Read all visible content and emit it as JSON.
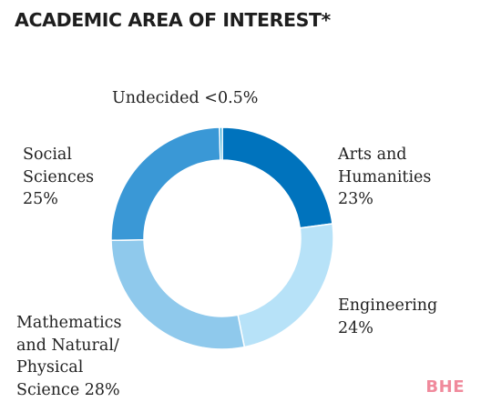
{
  "chart_data": {
    "type": "pie",
    "title": "ACADEMIC AREA OF INTEREST*",
    "slices": [
      {
        "label_lines": [
          "Arts and",
          "Humanities",
          "23%"
        ],
        "value": 23,
        "color": "#0073bd"
      },
      {
        "label_lines": [
          "Engineering",
          "24%"
        ],
        "value": 24,
        "color": "#b7e2f8"
      },
      {
        "label_lines": [
          "Mathematics",
          "and Natural/",
          "Physical",
          "Science 28%"
        ],
        "value": 28,
        "color": "#8fc9ec"
      },
      {
        "label_lines": [
          "Social",
          "Sciences",
          "25%"
        ],
        "value": 25,
        "color": "#3a98d6"
      },
      {
        "label_lines": [
          "Undecided <0.5%"
        ],
        "value": 0.4,
        "color": "#2fa8d8"
      }
    ],
    "start_angle_deg": 0,
    "legend": "none"
  },
  "watermark": {
    "text": "BHE",
    "color": "#f08a9c"
  }
}
